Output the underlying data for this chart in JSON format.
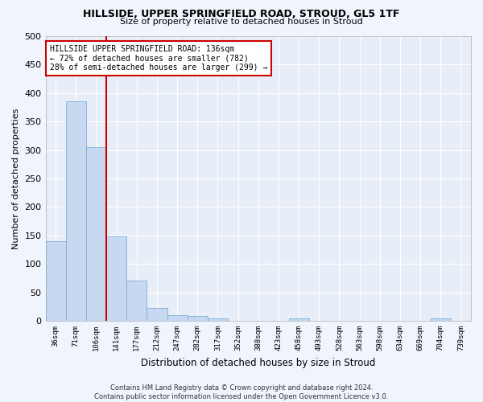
{
  "title": "HILLSIDE, UPPER SPRINGFIELD ROAD, STROUD, GL5 1TF",
  "subtitle": "Size of property relative to detached houses in Stroud",
  "xlabel": "Distribution of detached houses by size in Stroud",
  "ylabel": "Number of detached properties",
  "bar_color": "#c6d9f0",
  "bar_edge_color": "#7bafd4",
  "background_color": "#e8eef8",
  "grid_color": "#ffffff",
  "categories": [
    "36sqm",
    "71sqm",
    "106sqm",
    "141sqm",
    "177sqm",
    "212sqm",
    "247sqm",
    "282sqm",
    "317sqm",
    "352sqm",
    "388sqm",
    "423sqm",
    "458sqm",
    "493sqm",
    "528sqm",
    "563sqm",
    "598sqm",
    "634sqm",
    "669sqm",
    "704sqm",
    "739sqm"
  ],
  "values": [
    140,
    385,
    305,
    148,
    70,
    23,
    10,
    9,
    5,
    0,
    0,
    0,
    5,
    0,
    0,
    0,
    0,
    0,
    0,
    5,
    0
  ],
  "ylim": [
    0,
    500
  ],
  "yticks": [
    0,
    50,
    100,
    150,
    200,
    250,
    300,
    350,
    400,
    450,
    500
  ],
  "property_line_x": 2.5,
  "annotation_text": "HILLSIDE UPPER SPRINGFIELD ROAD: 136sqm\n← 72% of detached houses are smaller (782)\n28% of semi-detached houses are larger (299) →",
  "annotation_box_color": "#ffffff",
  "annotation_box_edge": "#cc0000",
  "property_line_color": "#cc0000",
  "footer_text": "Contains HM Land Registry data © Crown copyright and database right 2024.\nContains public sector information licensed under the Open Government Licence v3.0."
}
